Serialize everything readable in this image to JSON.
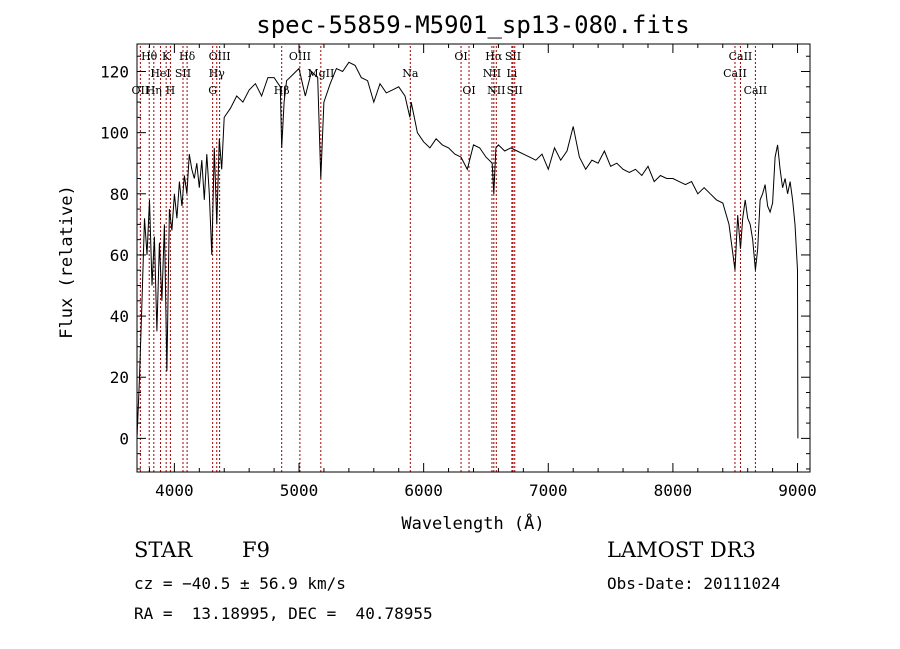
{
  "chart_data": {
    "type": "line",
    "title": "spec-55859-M5901_sp13-080.fits",
    "xlabel": "Wavelength (Å)",
    "ylabel": "Flux (relative)",
    "xlim": [
      3700,
      9100
    ],
    "ylim": [
      -11,
      129
    ],
    "xticks": [
      4000,
      5000,
      6000,
      7000,
      8000,
      9000
    ],
    "yticks": [
      0,
      20,
      40,
      60,
      80,
      100,
      120
    ],
    "grid": false,
    "legend": "none",
    "line_color": "#000000",
    "marker_color": "#a00000",
    "series": [
      {
        "x": [
          3700,
          3720,
          3740,
          3760,
          3780,
          3800,
          3820,
          3840,
          3860,
          3880,
          3900,
          3920,
          3940,
          3960,
          3980,
          4000,
          4020,
          4040,
          4060,
          4080,
          4100,
          4120,
          4140,
          4160,
          4180,
          4200,
          4220,
          4240,
          4260,
          4280,
          4300,
          4320,
          4340,
          4360,
          4380,
          4400,
          4450,
          4500,
          4550,
          4600,
          4650,
          4700,
          4750,
          4800,
          4850,
          4861,
          4880,
          4900,
          4950,
          5000,
          5050,
          5100,
          5150,
          5175,
          5200,
          5250,
          5300,
          5350,
          5400,
          5450,
          5500,
          5550,
          5600,
          5650,
          5700,
          5750,
          5800,
          5850,
          5890,
          5900,
          5950,
          6000,
          6050,
          6100,
          6150,
          6200,
          6250,
          6300,
          6350,
          6400,
          6450,
          6500,
          6550,
          6563,
          6580,
          6600,
          6650,
          6700,
          6750,
          6800,
          6850,
          6900,
          6950,
          7000,
          7050,
          7100,
          7150,
          7200,
          7250,
          7300,
          7350,
          7400,
          7450,
          7500,
          7550,
          7600,
          7650,
          7700,
          7750,
          7800,
          7850,
          7900,
          7950,
          8000,
          8050,
          8100,
          8150,
          8200,
          8250,
          8300,
          8350,
          8400,
          8450,
          8498,
          8520,
          8542,
          8560,
          8580,
          8600,
          8620,
          8640,
          8662,
          8680,
          8700,
          8720,
          8740,
          8760,
          8780,
          8800,
          8820,
          8840,
          8860,
          8880,
          8900,
          8920,
          8940,
          8960,
          8980,
          9000,
          9003
        ],
        "y": [
          0,
          20,
          45,
          72,
          60,
          78,
          50,
          66,
          35,
          64,
          45,
          70,
          22,
          75,
          68,
          80,
          72,
          84,
          76,
          86,
          80,
          93,
          88,
          85,
          90,
          82,
          91,
          78,
          93,
          80,
          60,
          95,
          70,
          98,
          88,
          105,
          108,
          112,
          110,
          114,
          116,
          112,
          118,
          118,
          115,
          95,
          110,
          117,
          119,
          121,
          112,
          120,
          118,
          85,
          110,
          116,
          121,
          120,
          123,
          122,
          118,
          117,
          110,
          116,
          113,
          114,
          115,
          112,
          105,
          110,
          100,
          97,
          95,
          98,
          96,
          95,
          93,
          92,
          88,
          96,
          95,
          92,
          90,
          80,
          95,
          96,
          94,
          95,
          94,
          93,
          92,
          91,
          93,
          88,
          95,
          91,
          94,
          102,
          92,
          88,
          91,
          90,
          94,
          89,
          90,
          88,
          87,
          88,
          86,
          89,
          84,
          86,
          85,
          85,
          84,
          83,
          84,
          80,
          82,
          80,
          78,
          77,
          70,
          55,
          73,
          62,
          72,
          78,
          72,
          70,
          65,
          55,
          62,
          78,
          80,
          83,
          76,
          74,
          77,
          92,
          96,
          88,
          82,
          85,
          80,
          84,
          78,
          70,
          55,
          0
        ]
      }
    ],
    "spectral_lines": [
      {
        "name": "Hθ",
        "x": 3798,
        "row": 0
      },
      {
        "name": "K",
        "x": 3934,
        "row": 0
      },
      {
        "name": "Hδ",
        "x": 4102,
        "row": 0
      },
      {
        "name": "OIII",
        "x": 4363,
        "row": 0
      },
      {
        "name": "OIII",
        "x": 5007,
        "row": 0
      },
      {
        "name": "OI",
        "x": 6300,
        "row": 0
      },
      {
        "name": "Hα",
        "x": 6563,
        "row": 0
      },
      {
        "name": "SII",
        "x": 6717,
        "row": 0
      },
      {
        "name": "CaII",
        "x": 8542,
        "row": 0
      },
      {
        "name": "HeI",
        "x": 3889,
        "row": 1
      },
      {
        "name": "SII",
        "x": 4069,
        "row": 1
      },
      {
        "name": "Hγ",
        "x": 4340,
        "row": 1
      },
      {
        "name": "MgII",
        "x": 5175,
        "row": 1
      },
      {
        "name": "Na",
        "x": 5893,
        "row": 1
      },
      {
        "name": "NII",
        "x": 6548,
        "row": 1
      },
      {
        "name": "Li",
        "x": 6708,
        "row": 1
      },
      {
        "name": "CaII",
        "x": 8498,
        "row": 1
      },
      {
        "name": "OII",
        "x": 3727,
        "row": 2
      },
      {
        "name": "Hη",
        "x": 3835,
        "row": 2
      },
      {
        "name": "H",
        "x": 3968,
        "row": 2
      },
      {
        "name": "G",
        "x": 4307,
        "row": 2
      },
      {
        "name": "Hβ",
        "x": 4861,
        "row": 2
      },
      {
        "name": "OI",
        "x": 6364,
        "row": 2
      },
      {
        "name": "NII",
        "x": 6583,
        "row": 2
      },
      {
        "name": "SII",
        "x": 6731,
        "row": 2
      },
      {
        "name": "CaII",
        "x": 8662,
        "row": 2
      }
    ]
  },
  "info": {
    "object_class": "STAR",
    "subclass": "F9",
    "survey": "LAMOST DR3",
    "redshift": "cz = −40.5 ± 56.9 km/s",
    "obs_date": "Obs-Date: 20111024",
    "coords": "RA =  13.18995, DEC =  40.78955"
  }
}
